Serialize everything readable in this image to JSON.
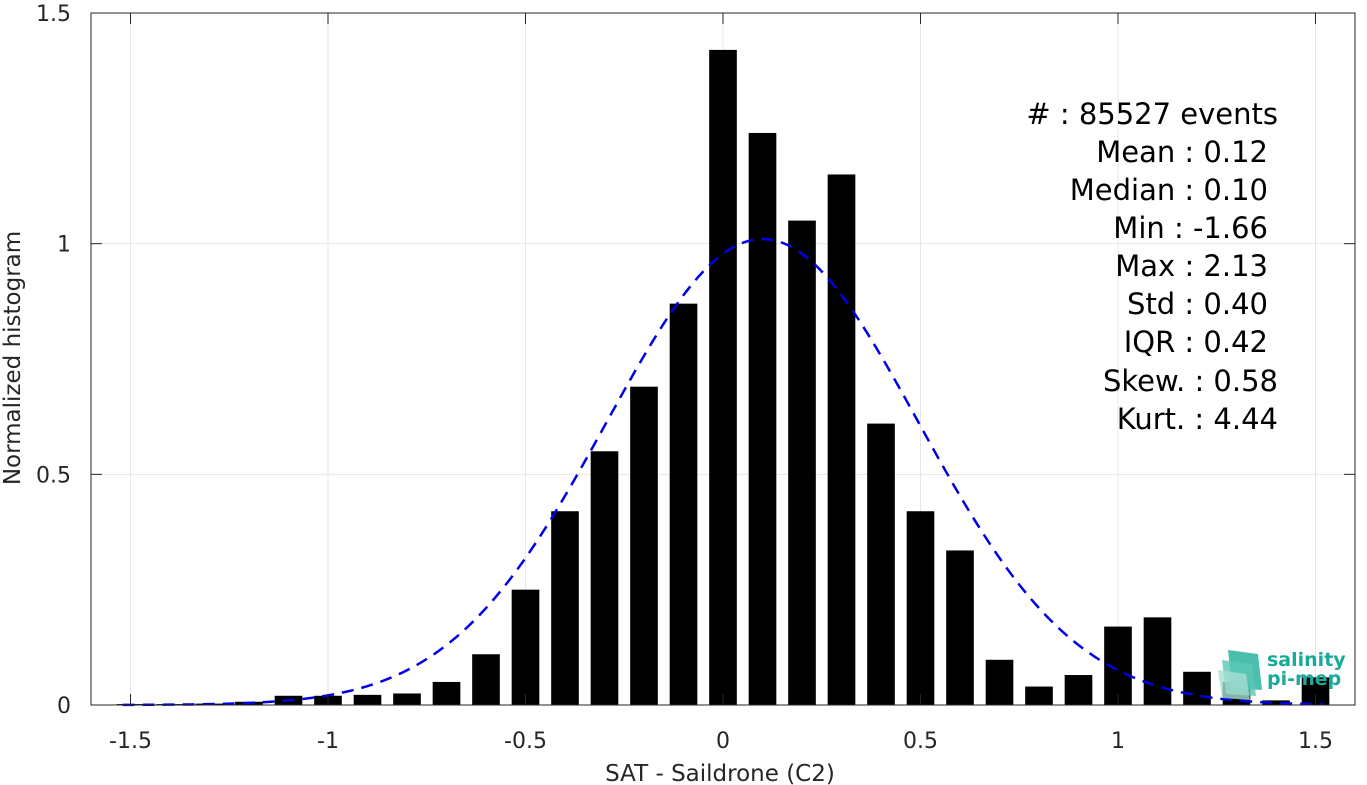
{
  "chart_data": {
    "type": "bar",
    "xlabel": "SAT - Saildrone (C2)",
    "ylabel": "Normalized histogram",
    "xlim": [
      -1.6,
      1.6
    ],
    "ylim": [
      0,
      1.5
    ],
    "xticks": [
      -1.5,
      -1,
      -0.5,
      0,
      0.5,
      1,
      1.5
    ],
    "xtick_labels": [
      "-1.5",
      "-1",
      "-0.5",
      "0",
      "0.5",
      "1",
      "1.5"
    ],
    "yticks": [
      0,
      0.5,
      1,
      1.5
    ],
    "ytick_labels": [
      "0",
      "0.5",
      "1",
      "1.5"
    ],
    "grid": true,
    "bin_width": 0.1,
    "bar_width_fraction": 0.7,
    "bin_centers": [
      -1.5,
      -1.4,
      -1.3,
      -1.2,
      -1.1,
      -1.0,
      -0.9,
      -0.8,
      -0.7,
      -0.6,
      -0.5,
      -0.4,
      -0.3,
      -0.2,
      -0.1,
      0.0,
      0.1,
      0.2,
      0.3,
      0.4,
      0.5,
      0.6,
      0.7,
      0.8,
      0.9,
      1.0,
      1.1,
      1.2,
      1.3,
      1.4,
      1.5
    ],
    "values": [
      0.002,
      0.002,
      0.003,
      0.007,
      0.02,
      0.02,
      0.022,
      0.025,
      0.05,
      0.11,
      0.25,
      0.42,
      0.55,
      0.69,
      0.87,
      1.42,
      1.24,
      1.05,
      1.15,
      0.61,
      0.42,
      0.335,
      0.098,
      0.04,
      0.065,
      0.17,
      0.19,
      0.072,
      0.05,
      0.01,
      0.06
    ],
    "fit": {
      "type": "normal",
      "style": "dashed",
      "color": "#0000e6",
      "mean": 0.1,
      "std": 0.395,
      "peak": 1.01
    },
    "bar_color": "#000000",
    "annotations": [
      "#  : 85527 events",
      "Mean : 0.12",
      "Median : 0.10",
      "Min : -1.66",
      "Max : 2.13",
      "Std : 0.40",
      "IQR : 0.42",
      "Skew. : 0.58",
      "Kurt. : 4.44"
    ],
    "logo": [
      "salinity",
      "pi-mep"
    ]
  }
}
